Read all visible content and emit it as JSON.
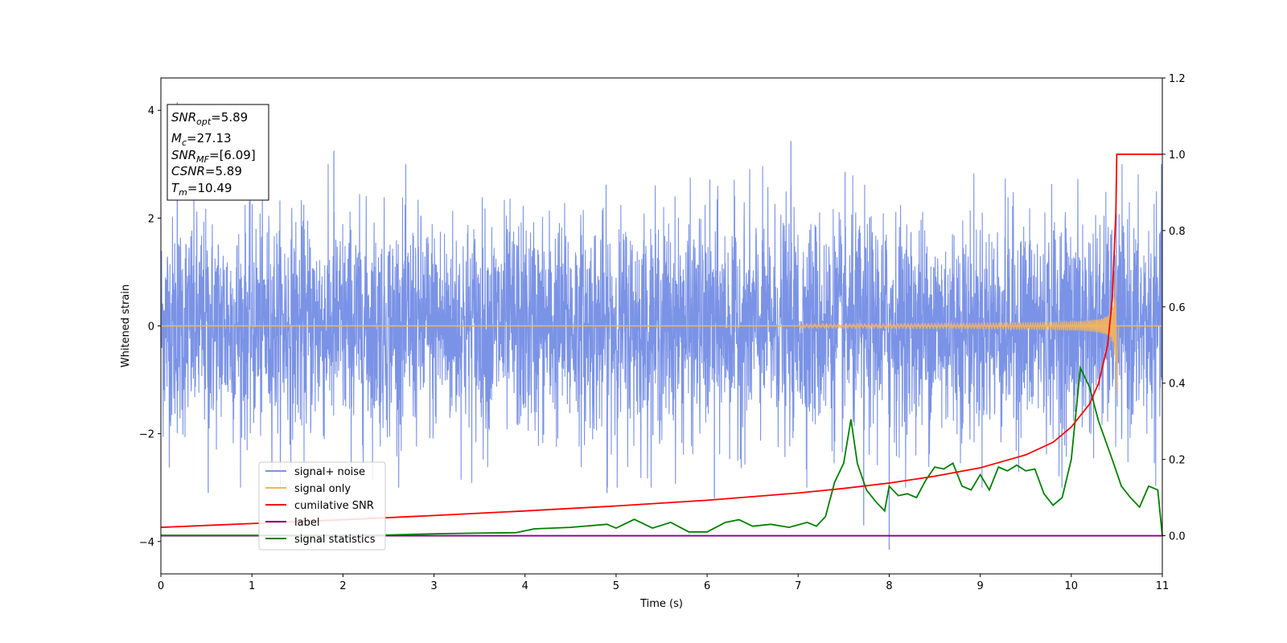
{
  "chart_data": {
    "type": "line",
    "xlabel": "Time (s)",
    "ylabel_left": "Whitened strain",
    "ylabel_right": "",
    "xlim": [
      0,
      11
    ],
    "ylim_left": [
      -4.6,
      4.6
    ],
    "ylim_right": [
      -0.1,
      1.2
    ],
    "x_ticks": [
      0,
      1,
      2,
      3,
      4,
      5,
      6,
      7,
      8,
      9,
      10,
      11
    ],
    "y_ticks_left": [
      -4,
      -2,
      0,
      2,
      4
    ],
    "y_ticks_right": [
      0.0,
      0.2,
      0.4,
      0.6,
      0.8,
      1.0,
      1.2
    ],
    "y_tick_labels_right": [
      "0.0",
      "0.2",
      "0.4",
      "0.6",
      "0.8",
      "1.0",
      "1.2"
    ],
    "grid": false,
    "legend_position": "lower-left",
    "info_box": {
      "snr_opt": {
        "base": "SNR",
        "sub": "opt",
        "value": "=5.89"
      },
      "mc": {
        "base": "M",
        "sub": "c",
        "value": "=27.13"
      },
      "snr_mf": {
        "base": "SNR",
        "sub": "MF",
        "value": "=[6.09]"
      },
      "csnr": {
        "base": "CSNR",
        "sub": "",
        "value": "=5.89"
      },
      "tm": {
        "base": "T",
        "sub": "m",
        "value": "=10.49"
      }
    },
    "series": [
      {
        "name": "signal+ noise",
        "axis": "left",
        "color": "#7b93e6",
        "description_values": "whitened noise around 0 with typical amplitude about ±2, extremes: 4.15 at t=0.18, -4.15 at t=8.0",
        "extreme_points": [
          [
            0.18,
            4.15
          ],
          [
            1.9,
            3.25
          ],
          [
            6.92,
            3.43
          ],
          [
            0.52,
            -3.1
          ],
          [
            8.0,
            -4.15
          ],
          [
            7.72,
            -3.7
          ],
          [
            6.08,
            -3.2
          ],
          [
            4.9,
            -3.1
          ]
        ]
      },
      {
        "name": "signal only",
        "axis": "left",
        "color": "#f5b55a",
        "chirp": {
          "t_merge": 10.49,
          "amplitude_end": 1.1,
          "start_visible": 7.0
        }
      },
      {
        "name": "cumilative SNR",
        "axis": "right",
        "color": "#ff0000",
        "x": [
          0,
          1,
          2,
          3,
          4,
          5,
          6,
          7,
          7.5,
          8,
          8.5,
          9,
          9.5,
          9.8,
          10.0,
          10.2,
          10.3,
          10.4,
          10.45,
          10.49,
          10.5,
          10.55,
          11
        ],
        "y": [
          0.022,
          0.032,
          0.042,
          0.053,
          0.065,
          0.078,
          0.093,
          0.112,
          0.124,
          0.138,
          0.156,
          0.178,
          0.212,
          0.245,
          0.285,
          0.345,
          0.4,
          0.5,
          0.62,
          0.85,
          1.0,
          1.0,
          1.0
        ]
      },
      {
        "name": "label",
        "axis": "right",
        "color": "#800080",
        "x": [
          0,
          11
        ],
        "y": [
          0.0,
          0.0
        ]
      },
      {
        "name": "signal statistics",
        "axis": "right",
        "color": "#008000",
        "x": [
          0,
          1,
          2,
          2.5,
          3,
          3.5,
          3.9,
          4.1,
          4.5,
          4.9,
          5.0,
          5.2,
          5.4,
          5.6,
          5.8,
          6.0,
          6.2,
          6.35,
          6.5,
          6.7,
          6.9,
          7.1,
          7.2,
          7.3,
          7.4,
          7.5,
          7.58,
          7.65,
          7.75,
          7.85,
          7.95,
          8.0,
          8.1,
          8.2,
          8.3,
          8.4,
          8.5,
          8.6,
          8.7,
          8.8,
          8.9,
          9.0,
          9.1,
          9.2,
          9.3,
          9.4,
          9.5,
          9.6,
          9.7,
          9.8,
          9.9,
          10.0,
          10.1,
          10.2,
          10.3,
          10.45,
          10.55,
          10.65,
          10.75,
          10.85,
          10.95,
          11.0
        ],
        "y": [
          0.001,
          0.001,
          0.001,
          0.002,
          0.005,
          0.007,
          0.008,
          0.018,
          0.022,
          0.03,
          0.02,
          0.043,
          0.02,
          0.035,
          0.01,
          0.01,
          0.035,
          0.042,
          0.025,
          0.03,
          0.022,
          0.035,
          0.025,
          0.05,
          0.14,
          0.19,
          0.305,
          0.19,
          0.12,
          0.09,
          0.065,
          0.13,
          0.105,
          0.11,
          0.1,
          0.145,
          0.18,
          0.175,
          0.19,
          0.13,
          0.12,
          0.16,
          0.12,
          0.18,
          0.17,
          0.185,
          0.17,
          0.175,
          0.11,
          0.08,
          0.1,
          0.2,
          0.44,
          0.39,
          0.3,
          0.2,
          0.13,
          0.1,
          0.075,
          0.13,
          0.12,
          0.0
        ]
      }
    ]
  }
}
